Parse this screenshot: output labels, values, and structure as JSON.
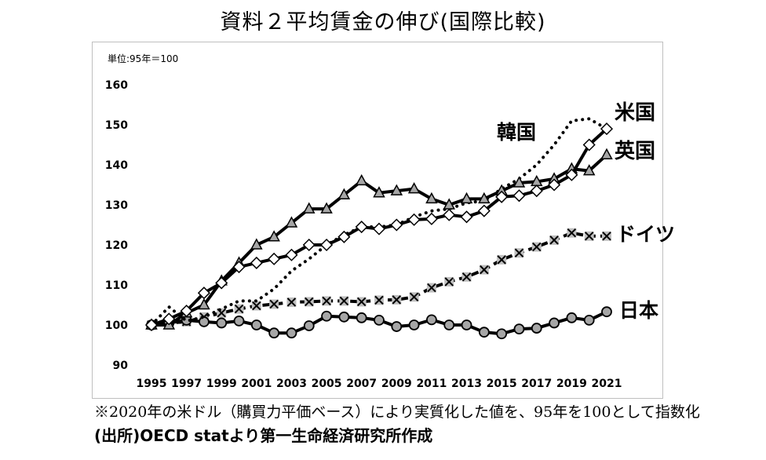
{
  "title": "資料２平均賃金の伸び(国際比較)",
  "footnote": "※2020年の米ドル（購買力平価ベース）により実質化した値を、95年を100として指数化",
  "source": "(出所)OECD statより第一生命経済研究所作成",
  "chart_data": {
    "type": "line",
    "unit_label": "単位:95年＝100",
    "ylim": [
      90,
      160
    ],
    "yticks": [
      90,
      100,
      110,
      120,
      130,
      140,
      150,
      160
    ],
    "xlim": [
      1995,
      2021
    ],
    "xticks": [
      1995,
      1997,
      1999,
      2001,
      2003,
      2005,
      2007,
      2009,
      2011,
      2013,
      2015,
      2017,
      2019,
      2021
    ],
    "x": [
      1995,
      1996,
      1997,
      1998,
      1999,
      2000,
      2001,
      2002,
      2003,
      2004,
      2005,
      2006,
      2007,
      2008,
      2009,
      2010,
      2011,
      2012,
      2013,
      2014,
      2015,
      2016,
      2017,
      2018,
      2019,
      2020,
      2021
    ],
    "series": [
      {
        "name": "米国",
        "marker": "diamond",
        "style": "solid",
        "values": [
          100,
          101.5,
          103.5,
          108,
          110.5,
          114.5,
          115.5,
          116.5,
          117.5,
          120,
          120,
          122,
          124.5,
          124,
          125,
          126.3,
          126.5,
          127.5,
          127,
          128.5,
          132,
          132.3,
          133.5,
          135,
          137.5,
          145,
          149
        ]
      },
      {
        "name": "英国",
        "marker": "triangle",
        "style": "solid",
        "values": [
          100,
          100,
          103,
          105,
          111,
          115.5,
          120,
          122,
          125.5,
          129,
          129,
          132.5,
          136,
          133,
          133.5,
          134,
          131.5,
          130,
          131.5,
          131.5,
          133.5,
          135.5,
          135.8,
          136.5,
          139,
          138.5,
          142.5
        ]
      },
      {
        "name": "韓国",
        "marker": "none",
        "style": "dotted",
        "values": [
          100,
          104.5,
          101,
          102,
          104,
          106,
          106,
          109,
          113.5,
          116.5,
          120,
          122.5,
          124.5,
          124.5,
          125,
          127,
          128.5,
          129,
          130.5,
          131,
          134,
          136.5,
          140,
          145,
          151,
          151.5,
          149
        ]
      },
      {
        "name": "ドイツ",
        "marker": "x",
        "style": "dashed",
        "values": [
          100,
          100.5,
          100.8,
          102,
          103,
          104,
          104.8,
          105.2,
          105.7,
          105.8,
          106,
          106,
          105.8,
          106.2,
          106.3,
          107,
          109.3,
          110.8,
          112,
          113.8,
          116.3,
          118,
          119.5,
          121.2,
          123,
          122.2,
          122.2
        ]
      },
      {
        "name": "日本",
        "marker": "circle",
        "style": "solid",
        "values": [
          100,
          100.5,
          101.2,
          100.8,
          100.5,
          101,
          100,
          98,
          98,
          99.8,
          102.2,
          102,
          101.8,
          101.2,
          99.6,
          100,
          101.3,
          100,
          100,
          98.2,
          97.8,
          99,
          99.2,
          100.5,
          101.8,
          101.2,
          103.3
        ]
      }
    ]
  }
}
